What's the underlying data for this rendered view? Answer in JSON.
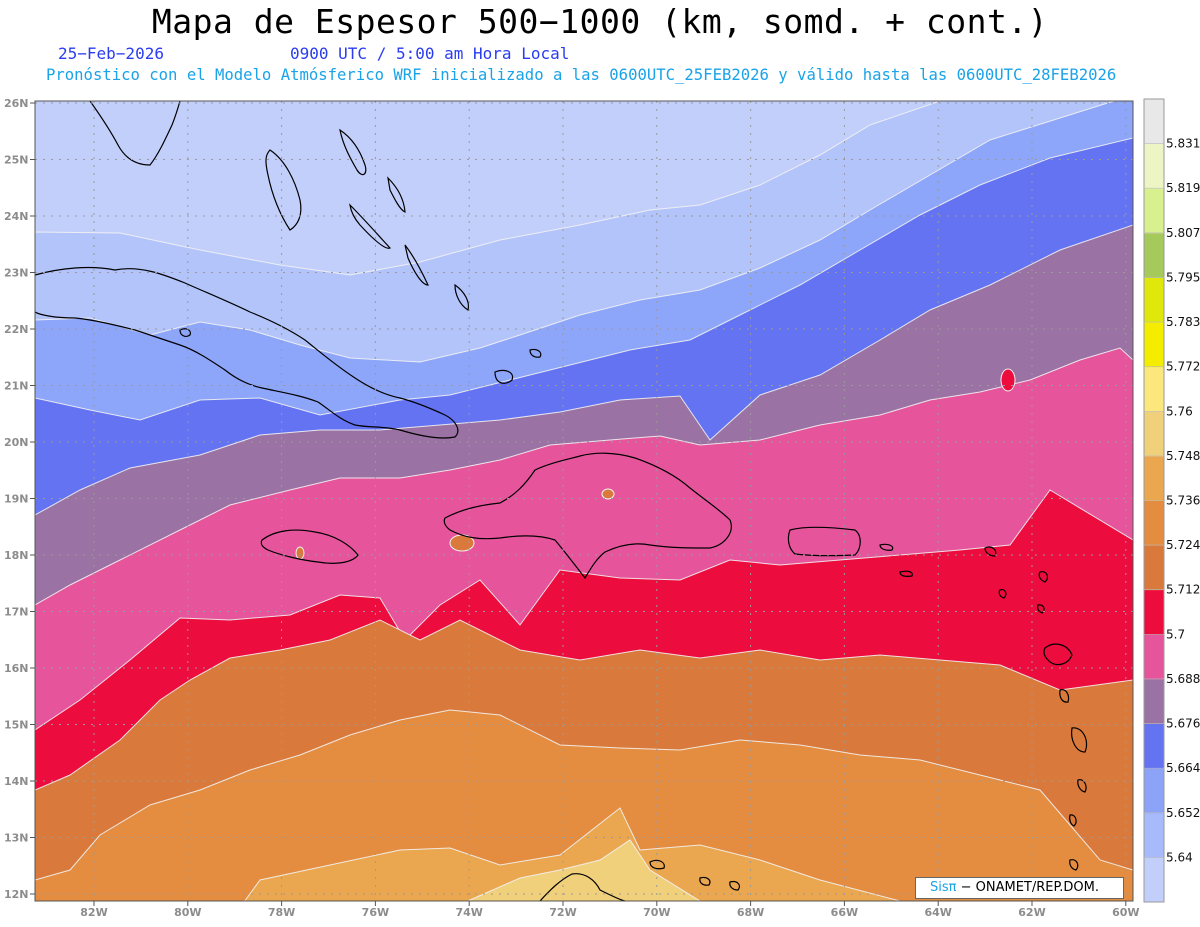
{
  "header": {
    "title": "Mapa de Espesor 500−1000 (km, somd. + cont.)",
    "date": "25−Feb−2026",
    "time": "0900 UTC / 5:00 am Hora Local",
    "description": "Pronóstico con el Modelo Atmósferico WRF inicializado a las 0600UTC_25FEB2026 y válido hasta las  0600UTC_28FEB2026"
  },
  "map": {
    "lon_labels": [
      "82W",
      "80W",
      "78W",
      "76W",
      "74W",
      "72W",
      "70W",
      "68W",
      "66W",
      "64W",
      "62W",
      "60W"
    ],
    "lat_labels": [
      "26N",
      "25N",
      "24N",
      "23N",
      "22N",
      "21N",
      "20N",
      "19N",
      "18N",
      "17N",
      "16N",
      "15N",
      "14N",
      "13N",
      "12N"
    ],
    "bands": [
      {
        "value": "5.652",
        "color": "#b3c4fb"
      },
      {
        "value": "5.664",
        "color": "#8ea6f9"
      },
      {
        "value": "5.676",
        "color": "#6373f2"
      },
      {
        "value": "5.688",
        "color": "#9b72a4"
      },
      {
        "value": "5.700",
        "color": "#e6559c"
      },
      {
        "value": "5.712",
        "color": "#ec0c3e"
      },
      {
        "value": "5.724",
        "color": "#d97a3c"
      },
      {
        "value": "5.736",
        "color": "#e48d40"
      },
      {
        "value": "5.748",
        "color": "#eba750"
      },
      {
        "value": "5.760",
        "color": "#f1d07c"
      }
    ]
  },
  "colorbar": {
    "colors": [
      "#c3cffb",
      "#a7bafb",
      "#8da3f8",
      "#6373f2",
      "#9b72a4",
      "#e6559c",
      "#ec0c3e",
      "#d97a3c",
      "#e48d40",
      "#eba750",
      "#f1d07c",
      "#fbe77c",
      "#f4ed00",
      "#dfe80a",
      "#a5c95a",
      "#d8f08e",
      "#eef5c4",
      "#e8e8e8"
    ],
    "labels": [
      "5.64",
      "5.652",
      "5.664",
      "5.676",
      "5.688",
      "5.7",
      "5.712",
      "5.724",
      "5.736",
      "5.748",
      "5.76",
      "5.772",
      "5.783",
      "5.795",
      "5.807",
      "5.819",
      "5.831"
    ]
  },
  "credit": {
    "logo": "Sisπ",
    "text": " − ONAMET/REP.DOM."
  }
}
